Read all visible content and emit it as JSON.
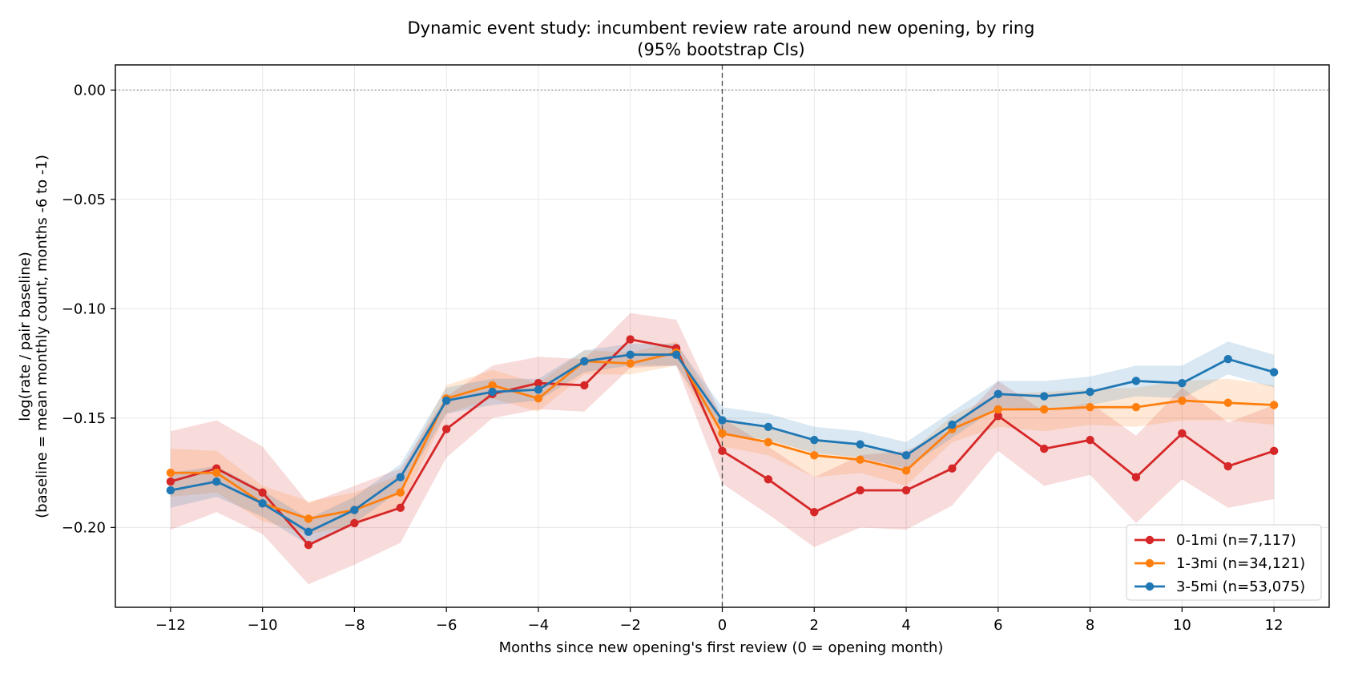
{
  "chart_data": {
    "type": "line",
    "title_line1": "Dynamic event study: incumbent review rate around new opening, by ring",
    "title_line2": "(95% bootstrap CIs)",
    "xlabel": "Months since new opening's first review (0 = opening month)",
    "ylabel_line1": "log(rate / pair baseline)",
    "ylabel_line2": "(baseline = mean monthly count, months -6 to -1)",
    "xlim": [
      -13.2,
      13.2
    ],
    "ylim": [
      -0.2365,
      0.0115
    ],
    "xticks": [
      -12,
      -10,
      -8,
      -6,
      -4,
      -2,
      0,
      2,
      4,
      6,
      8,
      10,
      12
    ],
    "xtick_labels": [
      "−12",
      "−10",
      "−8",
      "−6",
      "−4",
      "−2",
      "0",
      "2",
      "4",
      "6",
      "8",
      "10",
      "12"
    ],
    "yticks": [
      0.0,
      -0.05,
      -0.1,
      -0.15,
      -0.2
    ],
    "ytick_labels": [
      "0.00",
      "−0.05",
      "−0.10",
      "−0.15",
      "−0.20"
    ],
    "grid": true,
    "reference_lines": {
      "horizontal_y": 0.0,
      "vertical_x": 0
    },
    "legend_position": "lower-right",
    "x": [
      -12,
      -11,
      -10,
      -9,
      -8,
      -7,
      -6,
      -5,
      -4,
      -3,
      -2,
      -1,
      0,
      1,
      2,
      3,
      4,
      5,
      6,
      7,
      8,
      9,
      10,
      11,
      12
    ],
    "series": [
      {
        "name": "0-1mi (n=7,117)",
        "color": "#d62728",
        "values": [
          -0.179,
          -0.173,
          -0.184,
          -0.208,
          -0.198,
          -0.191,
          -0.155,
          -0.139,
          -0.134,
          -0.135,
          -0.114,
          -0.118,
          -0.165,
          -0.178,
          -0.193,
          -0.183,
          -0.183,
          -0.173,
          -0.149,
          -0.164,
          -0.16,
          -0.177,
          -0.157,
          -0.172,
          -0.165
        ],
        "ci_lower": [
          -0.201,
          -0.193,
          -0.203,
          -0.226,
          -0.217,
          -0.207,
          -0.168,
          -0.15,
          -0.146,
          -0.147,
          -0.127,
          -0.126,
          -0.18,
          -0.194,
          -0.209,
          -0.2,
          -0.201,
          -0.19,
          -0.165,
          -0.181,
          -0.176,
          -0.198,
          -0.178,
          -0.191,
          -0.187
        ],
        "ci_upper": [
          -0.156,
          -0.151,
          -0.163,
          -0.189,
          -0.181,
          -0.173,
          -0.14,
          -0.126,
          -0.122,
          -0.123,
          -0.102,
          -0.105,
          -0.15,
          -0.163,
          -0.177,
          -0.167,
          -0.165,
          -0.155,
          -0.133,
          -0.147,
          -0.143,
          -0.158,
          -0.136,
          -0.152,
          -0.144
        ]
      },
      {
        "name": "1-3mi (n=34,121)",
        "color": "#ff7f0e",
        "values": [
          -0.175,
          -0.175,
          -0.189,
          -0.196,
          -0.192,
          -0.184,
          -0.141,
          -0.135,
          -0.141,
          -0.124,
          -0.125,
          -0.12,
          -0.157,
          -0.161,
          -0.167,
          -0.169,
          -0.174,
          -0.155,
          -0.146,
          -0.146,
          -0.145,
          -0.145,
          -0.142,
          -0.143,
          -0.144
        ],
        "ci_lower": [
          -0.186,
          -0.184,
          -0.197,
          -0.203,
          -0.199,
          -0.191,
          -0.148,
          -0.141,
          -0.147,
          -0.13,
          -0.13,
          -0.126,
          -0.163,
          -0.167,
          -0.177,
          -0.175,
          -0.181,
          -0.161,
          -0.154,
          -0.156,
          -0.153,
          -0.154,
          -0.151,
          -0.151,
          -0.153
        ],
        "ci_upper": [
          -0.164,
          -0.165,
          -0.181,
          -0.188,
          -0.184,
          -0.176,
          -0.135,
          -0.128,
          -0.134,
          -0.119,
          -0.12,
          -0.115,
          -0.15,
          -0.154,
          -0.16,
          -0.163,
          -0.167,
          -0.149,
          -0.139,
          -0.138,
          -0.137,
          -0.136,
          -0.133,
          -0.132,
          -0.135
        ]
      },
      {
        "name": "3-5mi (n=53,075)",
        "color": "#1f77b4",
        "values": [
          -0.183,
          -0.179,
          -0.189,
          -0.202,
          -0.192,
          -0.177,
          -0.142,
          -0.138,
          -0.137,
          -0.124,
          -0.121,
          -0.121,
          -0.151,
          -0.154,
          -0.16,
          -0.162,
          -0.167,
          -0.153,
          -0.139,
          -0.14,
          -0.138,
          -0.133,
          -0.134,
          -0.123,
          -0.129
        ],
        "ci_lower": [
          -0.191,
          -0.186,
          -0.195,
          -0.208,
          -0.198,
          -0.183,
          -0.148,
          -0.144,
          -0.142,
          -0.129,
          -0.126,
          -0.126,
          -0.157,
          -0.16,
          -0.166,
          -0.168,
          -0.173,
          -0.159,
          -0.145,
          -0.146,
          -0.144,
          -0.14,
          -0.141,
          -0.13,
          -0.136
        ],
        "ci_upper": [
          -0.175,
          -0.172,
          -0.183,
          -0.196,
          -0.186,
          -0.171,
          -0.136,
          -0.132,
          -0.132,
          -0.119,
          -0.116,
          -0.116,
          -0.145,
          -0.148,
          -0.154,
          -0.156,
          -0.161,
          -0.147,
          -0.133,
          -0.133,
          -0.131,
          -0.126,
          -0.126,
          -0.115,
          -0.121
        ]
      }
    ]
  }
}
